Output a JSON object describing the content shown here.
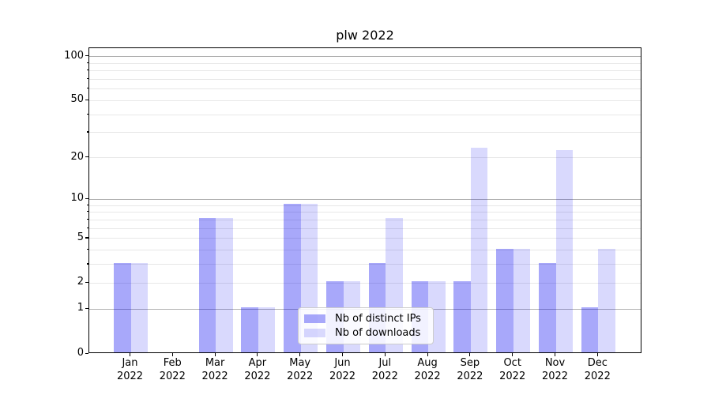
{
  "chart_data": {
    "type": "bar",
    "title": "plw 2022",
    "categories": [
      "Jan",
      "Feb",
      "Mar",
      "Apr",
      "May",
      "Jun",
      "Jul",
      "Aug",
      "Sep",
      "Oct",
      "Nov",
      "Dec"
    ],
    "category_year": "2022",
    "series": [
      {
        "name": "Nb of distinct IPs",
        "color": "rgba(0,0,240,0.34)",
        "values": [
          3,
          0,
          7,
          1,
          9,
          2,
          3,
          2,
          2,
          4,
          3,
          1
        ]
      },
      {
        "name": "Nb of downloads",
        "color": "rgba(0,0,240,0.15)",
        "values": [
          3,
          0,
          7,
          1,
          9,
          2,
          7,
          2,
          23,
          4,
          22,
          4
        ]
      }
    ],
    "yscale": "log1p",
    "ylim": [
      0,
      114
    ],
    "yticks": [
      0,
      1,
      2,
      5,
      10,
      20,
      50,
      100
    ],
    "gridlines_dark": [
      1,
      10,
      100
    ],
    "gridlines_light": [
      2,
      3,
      4,
      5,
      6,
      7,
      8,
      9,
      20,
      30,
      40,
      50,
      60,
      70,
      80,
      90
    ],
    "minor_yticks": [
      3,
      4,
      6,
      7,
      8,
      9,
      30,
      40,
      60,
      70,
      80,
      90
    ],
    "grid_colors": {
      "major": "#b0b0b0",
      "minor": "#e7e7e7"
    },
    "legend": {
      "position": "lower center",
      "entries": [
        "Nb of distinct IPs",
        "Nb of downloads"
      ]
    }
  }
}
